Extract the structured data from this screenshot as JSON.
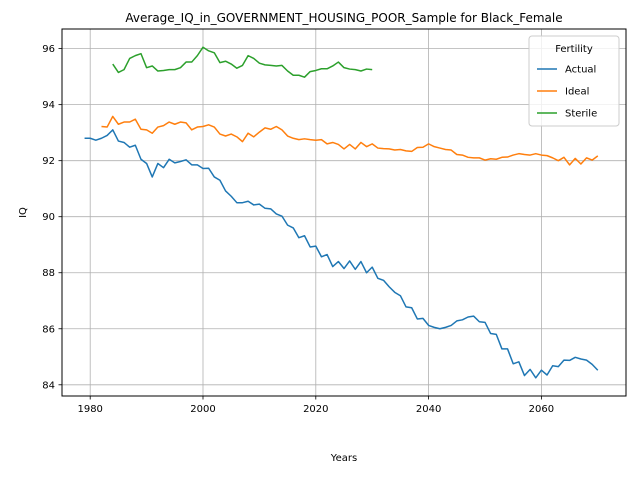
{
  "chart_data": {
    "type": "line",
    "title": "Average_IQ_in_GOVERNMENT_HOUSING_POOR_Sample for Black_Female",
    "xlabel": "Years",
    "ylabel": "IQ",
    "xlim": [
      1975,
      2075
    ],
    "ylim": [
      83.6,
      96.7
    ],
    "xticks": [
      1980,
      2000,
      2020,
      2040,
      2060
    ],
    "yticks": [
      84,
      86,
      88,
      90,
      92,
      94,
      96
    ],
    "grid": true,
    "legend": {
      "title": "Fertility",
      "position": "top-right"
    },
    "series": [
      {
        "name": "Actual",
        "color": "#1f77b4",
        "x": [
          1979,
          1980,
          1981,
          1982,
          1983,
          1984,
          1985,
          1986,
          1987,
          1988,
          1989,
          1990,
          1991,
          1992,
          1993,
          1994,
          1995,
          1996,
          1997,
          1998,
          1999,
          2000,
          2001,
          2002,
          2003,
          2004,
          2005,
          2006,
          2007,
          2008,
          2009,
          2010,
          2011,
          2012,
          2013,
          2014,
          2015,
          2016,
          2017,
          2018,
          2019,
          2020,
          2021,
          2022,
          2023,
          2024,
          2025,
          2026,
          2027,
          2028,
          2029,
          2030,
          2031,
          2032,
          2033,
          2034,
          2035,
          2036,
          2037,
          2038,
          2039,
          2040,
          2041,
          2042,
          2043,
          2044,
          2045,
          2046,
          2047,
          2048,
          2049,
          2050,
          2051,
          2052,
          2053,
          2054,
          2055,
          2056,
          2057,
          2058,
          2059,
          2060,
          2061,
          2062,
          2063,
          2064,
          2065,
          2066,
          2067,
          2068,
          2069,
          2070
        ],
        "y": [
          92.8,
          92.8,
          92.73,
          92.8,
          92.9,
          93.1,
          92.7,
          92.65,
          92.48,
          92.55,
          92.05,
          91.9,
          91.42,
          91.9,
          91.75,
          92.05,
          91.92,
          91.97,
          92.03,
          91.85,
          91.85,
          91.72,
          91.73,
          91.42,
          91.3,
          90.92,
          90.73,
          90.5,
          90.5,
          90.55,
          90.42,
          90.45,
          90.3,
          90.28,
          90.1,
          90.02,
          89.7,
          89.6,
          89.25,
          89.32,
          88.92,
          88.95,
          88.57,
          88.65,
          88.22,
          88.4,
          88.15,
          88.42,
          88.12,
          88.4,
          88.0,
          88.2,
          87.8,
          87.73,
          87.5,
          87.3,
          87.18,
          86.78,
          86.75,
          86.35,
          86.37,
          86.12,
          86.05,
          86.0,
          86.05,
          86.12,
          86.28,
          86.32,
          86.42,
          86.45,
          86.25,
          86.23,
          85.83,
          85.8,
          85.28,
          85.28,
          84.75,
          84.82,
          84.33,
          84.55,
          84.25,
          84.52,
          84.35,
          84.68,
          84.65,
          84.88,
          84.87,
          84.98,
          84.92,
          84.88,
          84.73,
          84.52
        ]
      },
      {
        "name": "Ideal",
        "color": "#ff7f0e",
        "x": [
          1982,
          1983,
          1984,
          1985,
          1986,
          1987,
          1988,
          1989,
          1990,
          1991,
          1992,
          1993,
          1994,
          1995,
          1996,
          1997,
          1998,
          1999,
          2000,
          2001,
          2002,
          2003,
          2004,
          2005,
          2006,
          2007,
          2008,
          2009,
          2010,
          2011,
          2012,
          2013,
          2014,
          2015,
          2016,
          2017,
          2018,
          2019,
          2020,
          2021,
          2022,
          2023,
          2024,
          2025,
          2026,
          2027,
          2028,
          2029,
          2030,
          2031,
          2032,
          2033,
          2034,
          2035,
          2036,
          2037,
          2038,
          2039,
          2040,
          2041,
          2042,
          2043,
          2044,
          2045,
          2046,
          2047,
          2048,
          2049,
          2050,
          2051,
          2052,
          2053,
          2054,
          2055,
          2056,
          2057,
          2058,
          2059,
          2060,
          2061,
          2062,
          2063,
          2064,
          2065,
          2066,
          2067,
          2068,
          2069,
          2070
        ],
        "y": [
          93.22,
          93.2,
          93.58,
          93.3,
          93.38,
          93.38,
          93.48,
          93.12,
          93.1,
          92.98,
          93.2,
          93.25,
          93.38,
          93.3,
          93.38,
          93.35,
          93.1,
          93.2,
          93.22,
          93.28,
          93.2,
          92.95,
          92.88,
          92.95,
          92.85,
          92.68,
          92.98,
          92.85,
          93.02,
          93.17,
          93.12,
          93.22,
          93.1,
          92.88,
          92.8,
          92.75,
          92.78,
          92.75,
          92.73,
          92.75,
          92.6,
          92.65,
          92.58,
          92.42,
          92.58,
          92.42,
          92.65,
          92.5,
          92.6,
          92.45,
          92.43,
          92.42,
          92.38,
          92.4,
          92.35,
          92.33,
          92.47,
          92.48,
          92.6,
          92.5,
          92.45,
          92.4,
          92.38,
          92.22,
          92.2,
          92.12,
          92.1,
          92.1,
          92.02,
          92.07,
          92.05,
          92.12,
          92.13,
          92.2,
          92.25,
          92.22,
          92.2,
          92.25,
          92.2,
          92.18,
          92.1,
          92.0,
          92.12,
          91.85,
          92.08,
          91.88,
          92.1,
          92.02,
          92.17
        ]
      },
      {
        "name": "Sterile",
        "color": "#2ca02c",
        "x": [
          1984,
          1985,
          1986,
          1987,
          1988,
          1989,
          1990,
          1991,
          1992,
          1993,
          1994,
          1995,
          1996,
          1997,
          1998,
          1999,
          2000,
          2001,
          2002,
          2003,
          2004,
          2005,
          2006,
          2007,
          2008,
          2009,
          2010,
          2011,
          2012,
          2013,
          2014,
          2015,
          2016,
          2017,
          2018,
          2019,
          2020,
          2021,
          2022,
          2023,
          2024,
          2025,
          2026,
          2027,
          2028,
          2029,
          2030
        ],
        "y": [
          95.45,
          95.15,
          95.25,
          95.65,
          95.75,
          95.82,
          95.32,
          95.38,
          95.2,
          95.22,
          95.25,
          95.25,
          95.32,
          95.52,
          95.52,
          95.75,
          96.05,
          95.92,
          95.85,
          95.5,
          95.55,
          95.45,
          95.3,
          95.4,
          95.75,
          95.65,
          95.48,
          95.42,
          95.4,
          95.38,
          95.4,
          95.2,
          95.05,
          95.05,
          94.98,
          95.18,
          95.22,
          95.28,
          95.28,
          95.38,
          95.52,
          95.32,
          95.27,
          95.25,
          95.2,
          95.27,
          95.25
        ]
      }
    ]
  }
}
